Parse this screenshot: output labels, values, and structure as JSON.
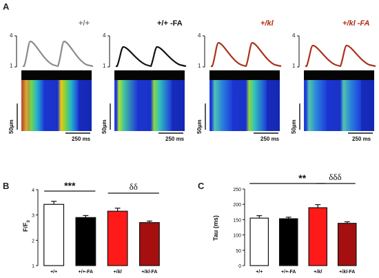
{
  "panels": {
    "a_label": "A",
    "b_label": "B",
    "c_label": "C"
  },
  "panel_a": {
    "titles": [
      "+/+",
      "+/+ -FA",
      "+/kl",
      "+/kl -FA"
    ],
    "title_colors": [
      "#777777",
      "#111111",
      "#b02a12",
      "#b02a12"
    ],
    "trace_colors": [
      "#8a8a8a",
      "#111111",
      "#a8321a",
      "#a8321a"
    ],
    "y_ticks": [
      "4",
      "1"
    ],
    "scale_time": "250 ms",
    "scale_space": "50µm"
  },
  "chart_data": [
    {
      "type": "bar",
      "title": "",
      "xlabel": "",
      "ylabel": "F/F0",
      "ylim": [
        1,
        4
      ],
      "yticks": [
        "1",
        "2",
        "3",
        "4"
      ],
      "categories": [
        "+/+",
        "+/+-FA",
        "+/kl",
        "+/kl-FA"
      ],
      "values": [
        3.42,
        2.9,
        3.15,
        2.7
      ],
      "errors": [
        0.12,
        0.08,
        0.12,
        0.06
      ],
      "colors": [
        "#ffffff",
        "#000000",
        "#ff1a1a",
        "#a50f0f"
      ],
      "significance": [
        {
          "label": "***",
          "from": 0,
          "to": 1
        },
        {
          "label": "δδ",
          "from": 2,
          "to": 3
        }
      ]
    },
    {
      "type": "bar",
      "title": "",
      "xlabel": "",
      "ylabel": "Tau (ms)",
      "ylim": [
        0,
        250
      ],
      "yticks": [
        "0",
        "50",
        "100",
        "150",
        "200",
        "250"
      ],
      "categories": [
        "+/+",
        "+/+-FA",
        "+/kl",
        "+/kl-FA"
      ],
      "values": [
        155,
        153,
        189,
        138
      ],
      "errors": [
        8,
        5,
        10,
        5
      ],
      "colors": [
        "#ffffff",
        "#000000",
        "#ff1a1a",
        "#a50f0f"
      ],
      "significance": [
        {
          "label": "**",
          "from": 0,
          "to": 2
        },
        {
          "label": "δδδ",
          "from": 2,
          "to": 3
        }
      ]
    }
  ]
}
